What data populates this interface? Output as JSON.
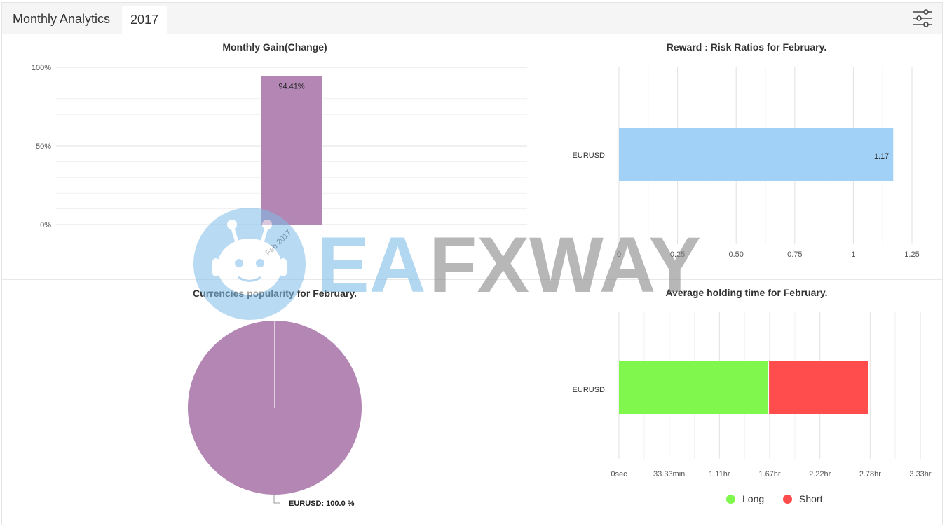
{
  "header": {
    "title": "Monthly Analytics",
    "year_tab": "2017",
    "settings_icon": "sliders-icon"
  },
  "watermark": {
    "text_a": "EA",
    "text_b": "FXWAY"
  },
  "colors": {
    "gain_bar": "#b386b4",
    "reward_bar": "#a1d1f6",
    "long": "#80f74c",
    "short": "#ff4c4c",
    "pie": "#b386b4"
  },
  "chart_data": [
    {
      "type": "bar",
      "title": "Monthly Gain(Change)",
      "categories": [
        "Feb 2017"
      ],
      "values": [
        94.41
      ],
      "data_labels": [
        "94.41%"
      ],
      "yticks": [
        "0%",
        "50%",
        "100%"
      ],
      "ylim": [
        0,
        100
      ],
      "grid": true
    },
    {
      "type": "bar",
      "orientation": "horizontal",
      "title": "Reward : Risk Ratios for February.",
      "categories": [
        "EURUSD"
      ],
      "values": [
        1.17
      ],
      "data_labels": [
        "1.17"
      ],
      "xticks": [
        "0",
        "0.25",
        "0.50",
        "0.75",
        "1",
        "1.25"
      ],
      "xlim": [
        0,
        1.25
      ],
      "grid": true
    },
    {
      "type": "pie",
      "title": "Currencies popularity for February.",
      "labels": [
        "EURUSD"
      ],
      "values": [
        100.0
      ],
      "data_labels": [
        "EURUSD: 100.0 %"
      ]
    },
    {
      "type": "bar",
      "orientation": "horizontal",
      "stacked": true,
      "title": "Average holding time for February.",
      "categories": [
        "EURUSD"
      ],
      "series": [
        {
          "name": "Long",
          "values": [
            1.65
          ]
        },
        {
          "name": "Short",
          "values": [
            1.1
          ]
        }
      ],
      "xticks": [
        "0sec",
        "33.33min",
        "1.11hr",
        "1.67hr",
        "2.22hr",
        "2.78hr",
        "3.33hr"
      ],
      "xlim": [
        0,
        3.33
      ],
      "legend": "bottom",
      "grid": true
    }
  ]
}
